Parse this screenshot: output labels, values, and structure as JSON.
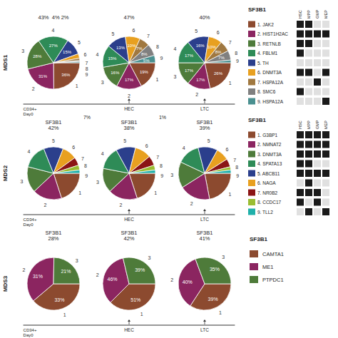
{
  "chart_data": [
    {
      "type": "pie",
      "title": "MDS1",
      "categories": [
        "1",
        "2",
        "3",
        "4",
        "5",
        "6",
        "7",
        "8",
        "9"
      ],
      "colors": [
        "#8C4A2F",
        "#8B2560",
        "#4E7B3A",
        "#2E8B57",
        "#2B3F8C",
        "#E8A020",
        "#A07840",
        "#808080",
        "#4A9090"
      ],
      "data_labels": true,
      "annotations": [
        "CD34+\nDay0",
        "HEC",
        "LTC"
      ],
      "series": [
        {
          "name": "43%  4% 2%",
          "values": [
            36,
            31,
            28,
            27,
            15,
            4,
            2,
            1,
            1
          ],
          "value_labels": [
            "36%",
            "31%",
            "28%",
            "27%",
            "15%",
            null,
            null,
            null,
            null
          ]
        },
        {
          "name": "47%",
          "values": [
            19,
            17,
            16,
            15,
            13,
            10,
            7,
            8,
            5
          ],
          "value_labels": [
            "19%",
            "17%",
            "16%",
            "15%",
            "13%",
            "10%",
            "7%",
            "8%",
            "5%"
          ]
        },
        {
          "name": "40%",
          "values": [
            26,
            17,
            17,
            17,
            16,
            10,
            8,
            7,
            2
          ],
          "value_labels": [
            "26%",
            "17%",
            "17%",
            "17%",
            "16%",
            "10%",
            "8%",
            "7%",
            null
          ]
        }
      ]
    },
    {
      "type": "heatmap",
      "title": "SF3B1",
      "categories": [
        "1. JAK2",
        "2. HIST1H2AC",
        "3. RETNLB",
        "4. FBLM1",
        "5. TH",
        "6. DNMT3A",
        "7. HSPA12A",
        "8. SMC6",
        "9. HSPA12A"
      ],
      "colors": [
        "#8C4A2F",
        "#8B2560",
        "#4E7B3A",
        "#2E8B57",
        "#2B3F8C",
        "#E8A020",
        "#A07840",
        "#808080",
        "#4A9090"
      ],
      "x": [
        "HSC",
        "MPP",
        "GMP",
        "MEP"
      ],
      "values": [
        [
          1,
          1,
          0,
          0
        ],
        [
          1,
          1,
          1,
          1
        ],
        [
          1,
          1,
          0,
          0
        ],
        [
          1,
          0,
          0,
          0
        ],
        [
          0,
          0,
          0,
          0
        ],
        [
          1,
          1,
          0,
          1
        ],
        [
          0,
          0,
          1,
          0
        ],
        [
          1,
          0,
          0,
          0
        ],
        [
          0,
          0,
          0,
          1
        ]
      ]
    },
    {
      "type": "pie",
      "title": "MDS2",
      "categories": [
        "1",
        "2",
        "3",
        "4",
        "5",
        "6",
        "7",
        "8",
        "9"
      ],
      "colors": [
        "#8C4A2F",
        "#8B2560",
        "#4E7B3A",
        "#2E8B57",
        "#2B3F8C",
        "#E8A020",
        "#8B1515",
        "#9ABD32",
        "#20B0AA"
      ],
      "data_labels": false,
      "annotations": [
        "CD34+\nDay0",
        "HEC",
        "LTC"
      ],
      "series": [
        {
          "name": "SF3B1\n42%",
          "values": [
            20,
            18,
            16,
            15,
            12,
            9,
            5,
            3,
            2
          ],
          "annotations": [
            "7%"
          ]
        },
        {
          "name": "SF3B1\n38%",
          "values": [
            20,
            18,
            15,
            14,
            12,
            10,
            6,
            3,
            2
          ],
          "annotations": [
            "1%"
          ]
        },
        {
          "name": "SF3B1\n39%",
          "values": [
            22,
            19,
            16,
            14,
            12,
            8,
            5,
            2,
            2
          ]
        }
      ]
    },
    {
      "type": "heatmap",
      "title": "SF3B1",
      "categories": [
        "1. G3BP1",
        "2. NMNAT2",
        "3. DNMT3A",
        "4. SPATA13",
        "5. ABCB11",
        "6. NAGA",
        "7. NR0B2",
        "8. CCDC17",
        "9. TLL2"
      ],
      "colors": [
        "#8C4A2F",
        "#8B2560",
        "#4E7B3A",
        "#2E8B57",
        "#2B3F8C",
        "#E8A020",
        "#8B1515",
        "#9ABD32",
        "#20B0AA"
      ],
      "x": [
        "HSC",
        "MPP",
        "GMP",
        "MEP"
      ],
      "values": [
        [
          1,
          1,
          1,
          1
        ],
        [
          1,
          1,
          1,
          1
        ],
        [
          1,
          1,
          1,
          1
        ],
        [
          1,
          1,
          0,
          0
        ],
        [
          1,
          1,
          1,
          1
        ],
        [
          0,
          1,
          0,
          0
        ],
        [
          1,
          1,
          1,
          0
        ],
        [
          1,
          0,
          1,
          0
        ],
        [
          0,
          1,
          0,
          1
        ]
      ]
    },
    {
      "type": "pie",
      "title": "MDS3",
      "categories": [
        "1",
        "2",
        "3"
      ],
      "colors": [
        "#8C4A2F",
        "#8B2560",
        "#4E7B3A"
      ],
      "data_labels": true,
      "annotations": [
        "CD34+\nDay0",
        "HEC",
        "LTC"
      ],
      "series": [
        {
          "name": "SF3B1\n28%",
          "values": [
            33,
            31,
            21
          ],
          "value_labels": [
            "33%",
            "31%",
            "21%"
          ]
        },
        {
          "name": "SF3B1\n42%",
          "values": [
            51,
            46,
            39
          ],
          "value_labels": [
            "51%",
            "46%",
            "39%"
          ]
        },
        {
          "name": "SF3B1\n41%",
          "values": [
            39,
            40,
            35
          ],
          "value_labels": [
            "39%",
            "40%",
            "35%"
          ]
        }
      ]
    },
    {
      "type": "legend",
      "title": "SF3B1",
      "categories": [
        "CAMTA1",
        "ME1",
        "PTPDC1"
      ],
      "colors": [
        "#8C4A2F",
        "#8B2560",
        "#4E7B3A"
      ]
    }
  ]
}
